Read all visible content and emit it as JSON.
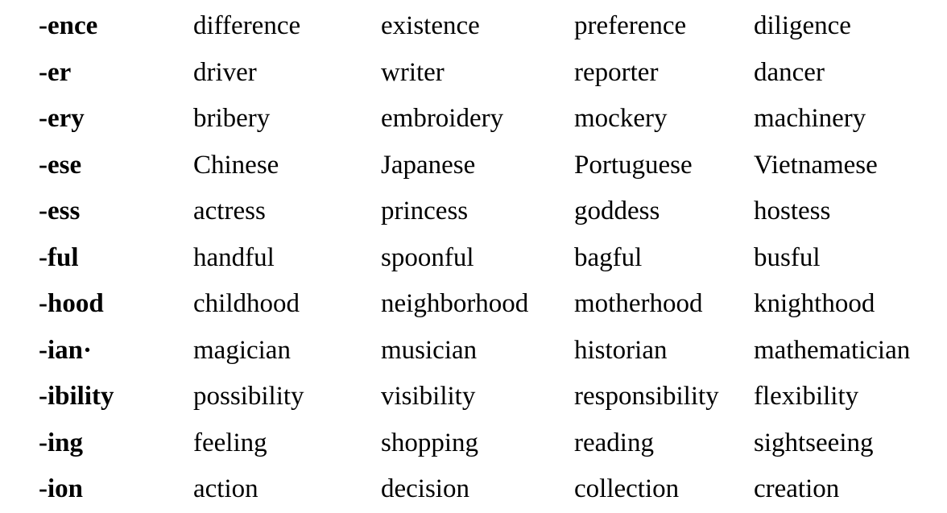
{
  "rows": [
    {
      "suffix": "-ence",
      "words": [
        "difference",
        "existence",
        "preference",
        "diligence"
      ]
    },
    {
      "suffix": "-er",
      "words": [
        "driver",
        "writer",
        "reporter",
        "dancer"
      ]
    },
    {
      "suffix": "-ery",
      "words": [
        "bribery",
        "embroidery",
        "mockery",
        "machinery"
      ]
    },
    {
      "suffix": "-ese",
      "words": [
        "Chinese",
        "Japanese",
        "Portuguese",
        "Vietnamese"
      ]
    },
    {
      "suffix": "-ess",
      "words": [
        "actress",
        "princess",
        "goddess",
        "hostess"
      ]
    },
    {
      "suffix": "-ful",
      "words": [
        "handful",
        "spoonful",
        "bagful",
        "busful"
      ]
    },
    {
      "suffix": "-hood",
      "words": [
        "childhood",
        "neighborhood",
        "motherhood",
        "knighthood"
      ]
    },
    {
      "suffix": "-ian·",
      "words": [
        "magician",
        "musician",
        "historian",
        "mathematician"
      ]
    },
    {
      "suffix": "-ibility",
      "words": [
        "possibility",
        "visibility",
        "responsibility",
        "flexibility"
      ]
    },
    {
      "suffix": "-ing",
      "words": [
        "feeling",
        "shopping",
        "reading",
        "sightseeing"
      ]
    },
    {
      "suffix": "-ion",
      "words": [
        "action",
        "decision",
        "collection",
        "creation"
      ]
    }
  ]
}
